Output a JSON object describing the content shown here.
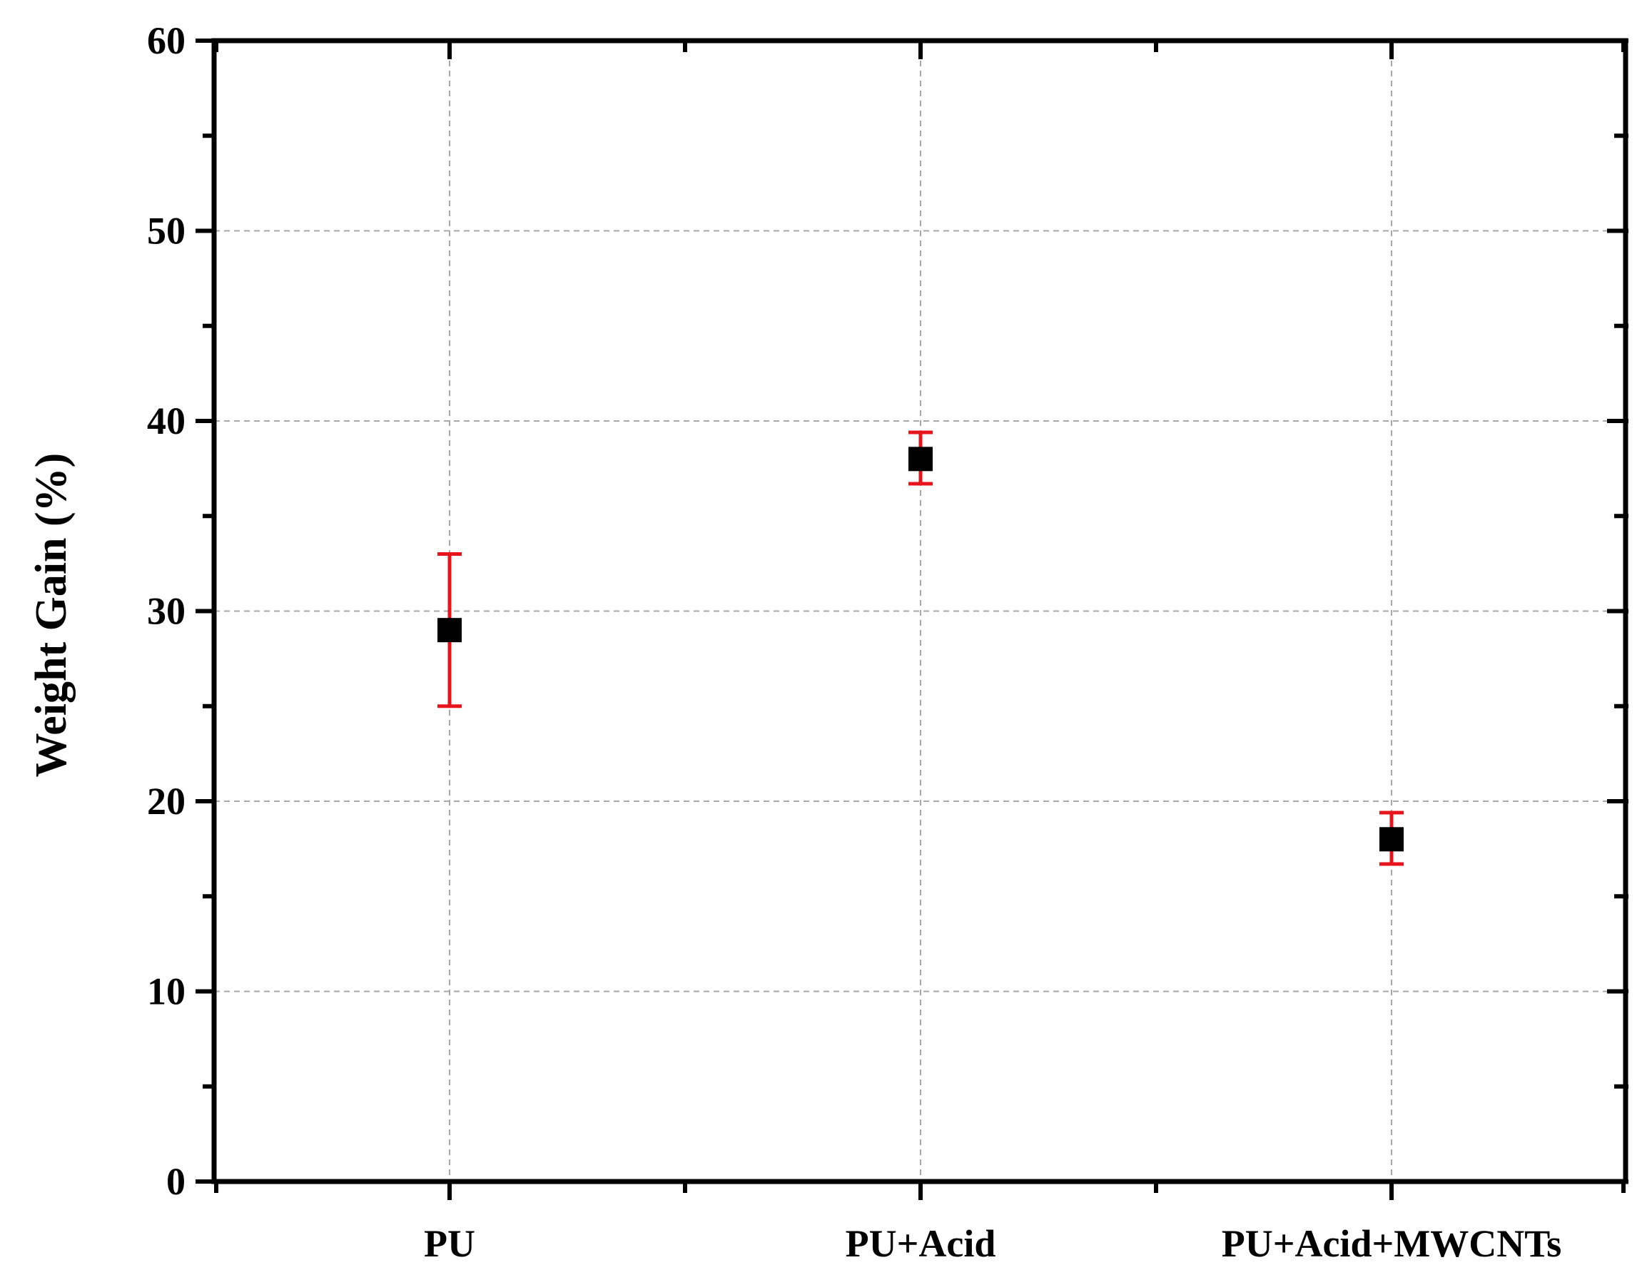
{
  "chart_data": {
    "type": "scatter",
    "title": "",
    "xlabel": "",
    "ylabel": "Weight Gain (%)",
    "ylim": [
      0,
      60
    ],
    "yticks": [
      0,
      10,
      20,
      30,
      40,
      50,
      60
    ],
    "grid": true,
    "categories": [
      "PU",
      "PU+Acid",
      "PU+Acid+MWCNTs"
    ],
    "series": [
      {
        "values": [
          29,
          38,
          18
        ],
        "error_low": [
          25,
          36.7,
          16.7
        ],
        "error_high": [
          33,
          39.4,
          19.4
        ],
        "marker": "square",
        "marker_color": "#000000",
        "error_color": "#e8141b"
      }
    ],
    "colors": {
      "grid": "#a8a8a8",
      "axis": "#000000"
    }
  }
}
